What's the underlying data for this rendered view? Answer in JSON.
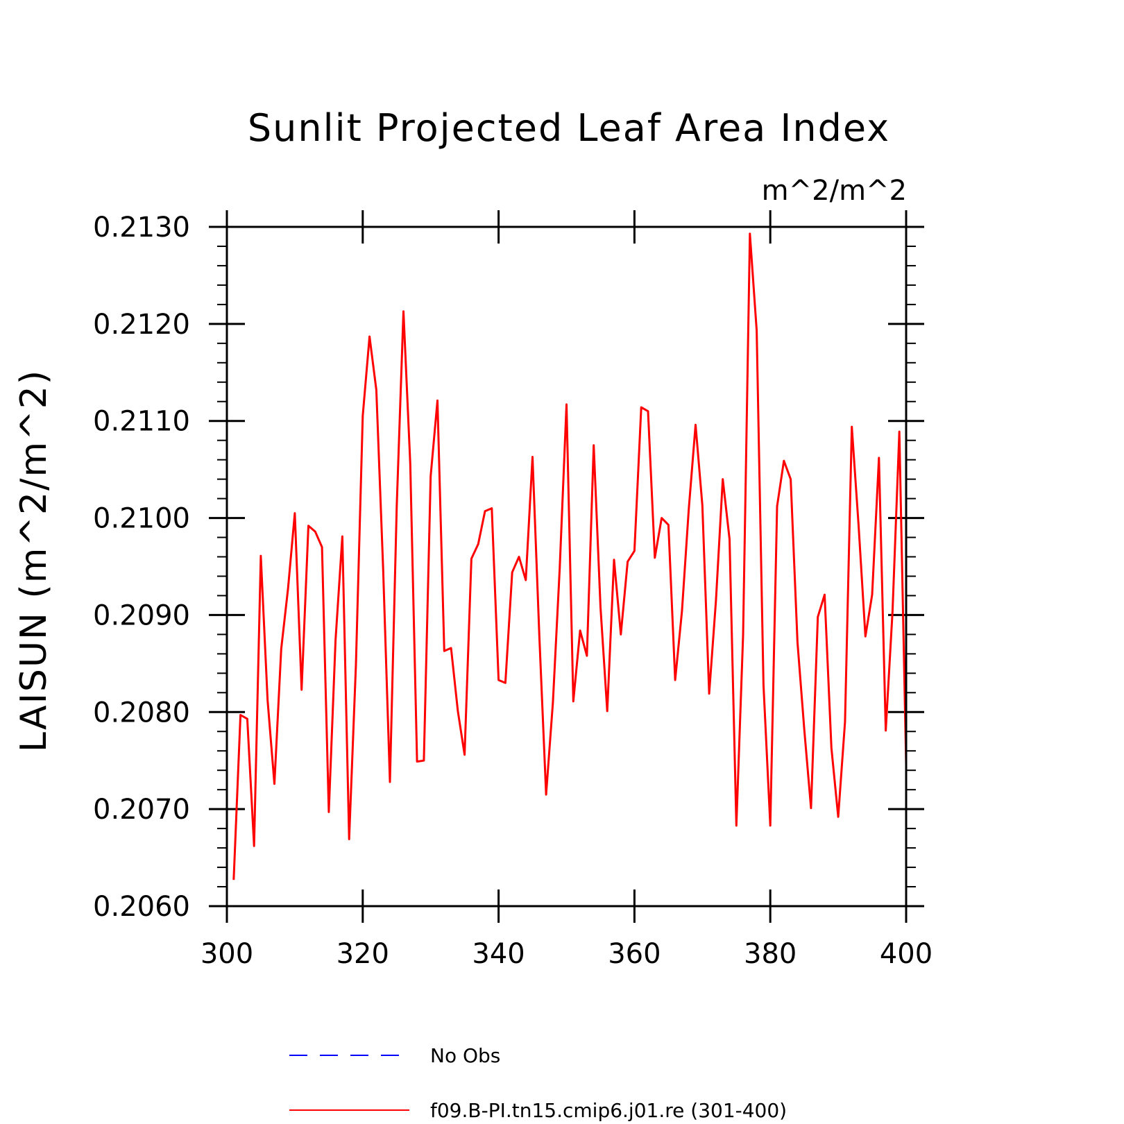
{
  "chart_data": {
    "type": "line",
    "title": "Sunlit Projected Leaf Area Index",
    "units": "m^2/m^2",
    "ylabel": "LAISUN   (m^2/m^2)",
    "xlabel": "",
    "xlim": [
      300,
      400
    ],
    "ylim": [
      0.206,
      0.213
    ],
    "x_ticks": [
      300,
      320,
      340,
      360,
      380,
      400
    ],
    "y_ticks": [
      0.206,
      0.207,
      0.208,
      0.209,
      0.21,
      0.211,
      0.212,
      0.213
    ],
    "x_tick_labels": [
      "300",
      "320",
      "340",
      "360",
      "380",
      "400"
    ],
    "y_tick_labels": [
      "0.2060",
      "0.2070",
      "0.2080",
      "0.2090",
      "0.2100",
      "0.2110",
      "0.2120",
      "0.2130"
    ],
    "grid": false,
    "legend_position": "bottom",
    "series": [
      {
        "name": "No Obs",
        "color": "#0000ff",
        "dash": "dashed",
        "values": []
      },
      {
        "name": "f09.B-PI.tn15.cmip6.j01.re (301-400)",
        "color": "#ff0000",
        "dash": "solid",
        "x": [
          301,
          302,
          303,
          304,
          305,
          306,
          307,
          308,
          309,
          310,
          311,
          312,
          313,
          314,
          315,
          316,
          317,
          318,
          319,
          320,
          321,
          322,
          323,
          324,
          325,
          326,
          327,
          328,
          329,
          330,
          331,
          332,
          333,
          334,
          335,
          336,
          337,
          338,
          339,
          340,
          341,
          342,
          343,
          344,
          345,
          346,
          347,
          348,
          349,
          350,
          351,
          352,
          353,
          354,
          355,
          356,
          357,
          358,
          359,
          360,
          361,
          362,
          363,
          364,
          365,
          366,
          367,
          368,
          369,
          370,
          371,
          372,
          373,
          374,
          375,
          376,
          377,
          378,
          379,
          380,
          381,
          382,
          383,
          384,
          385,
          386,
          387,
          388,
          389,
          390,
          391,
          392,
          393,
          394,
          395,
          396,
          397,
          398,
          399,
          400
        ],
        "values": [
          0.20627,
          0.20797,
          0.20793,
          0.20662,
          0.20961,
          0.20812,
          0.20726,
          0.20865,
          0.20927,
          0.21005,
          0.20823,
          0.20992,
          0.20986,
          0.2097,
          0.20697,
          0.20874,
          0.20981,
          0.20669,
          0.20849,
          0.21105,
          0.21187,
          0.21132,
          0.20948,
          0.20728,
          0.21012,
          0.21213,
          0.21056,
          0.20749,
          0.2075,
          0.21043,
          0.21121,
          0.20863,
          0.20866,
          0.20801,
          0.20756,
          0.20958,
          0.20973,
          0.21007,
          0.2101,
          0.20833,
          0.2083,
          0.20944,
          0.2096,
          0.20936,
          0.21063,
          0.20879,
          0.20715,
          0.2081,
          0.20948,
          0.21117,
          0.20811,
          0.20884,
          0.20858,
          0.21075,
          0.20908,
          0.20801,
          0.20957,
          0.2088,
          0.20955,
          0.20966,
          0.21114,
          0.2111,
          0.20959,
          0.21,
          0.20993,
          0.20833,
          0.20904,
          0.21009,
          0.21096,
          0.21013,
          0.20819,
          0.20915,
          0.2104,
          0.20978,
          0.20683,
          0.20879,
          0.21293,
          0.21193,
          0.20828,
          0.20683,
          0.21012,
          0.21059,
          0.2104,
          0.20872,
          0.20782,
          0.20701,
          0.20898,
          0.20921,
          0.20763,
          0.20692,
          0.2079,
          0.21094,
          0.20992,
          0.20878,
          0.20921,
          0.21062,
          0.20781,
          0.20904,
          0.21089,
          0.20746
        ]
      }
    ]
  }
}
